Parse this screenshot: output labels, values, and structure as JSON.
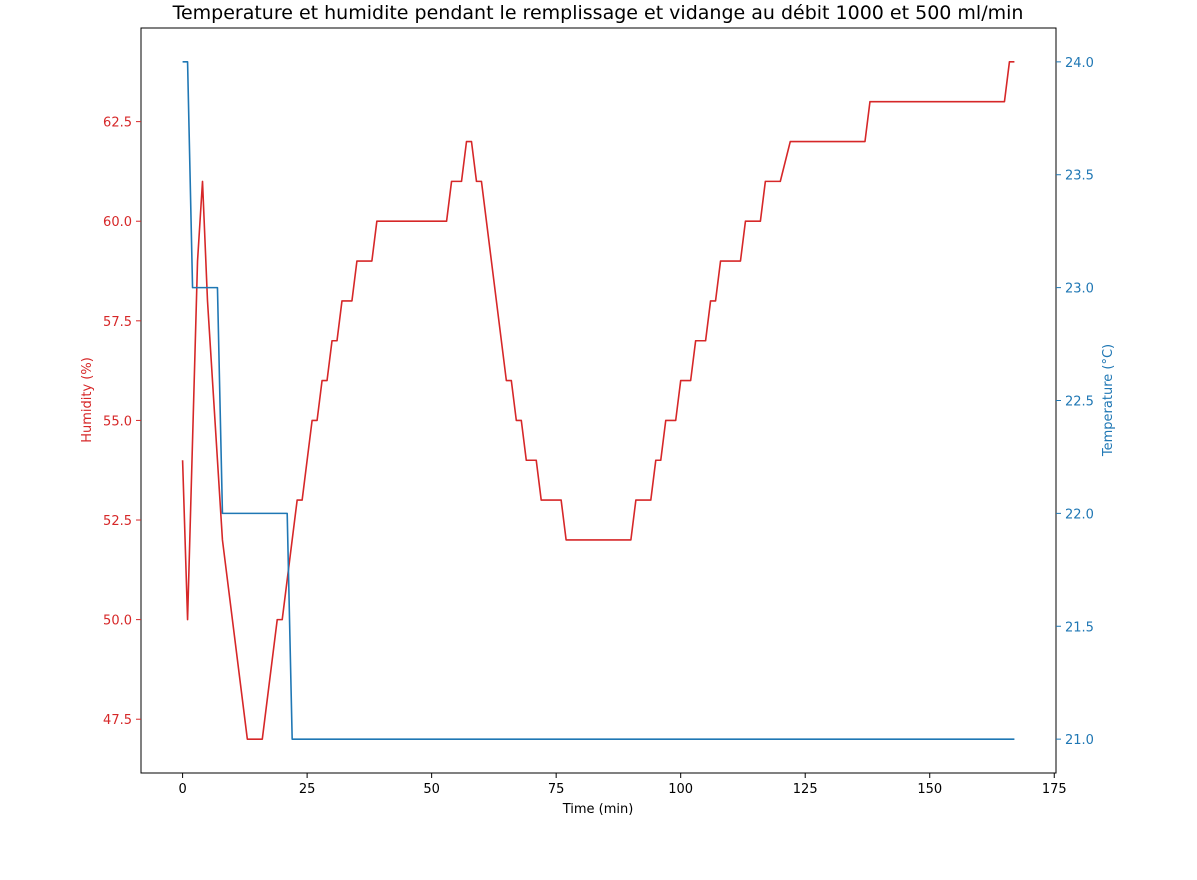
{
  "chart_data": {
    "type": "line",
    "title": "Temperature et humidite pendant le remplissage et vidange au débit 1000 et 500 ml/min",
    "xlabel": "Time (min)",
    "xlim": [
      -8.35,
      175.35
    ],
    "xticks": [
      0,
      25,
      50,
      75,
      100,
      125,
      150,
      175
    ],
    "xtick_labels": [
      "0",
      "25",
      "50",
      "75",
      "100",
      "125",
      "150",
      "175"
    ],
    "grid": false,
    "axes": {
      "left": {
        "label": "Humidity (%)",
        "color": "#d62728",
        "ylim": [
          46.15,
          64.85
        ],
        "ticks": [
          47.5,
          50.0,
          52.5,
          55.0,
          57.5,
          60.0,
          62.5
        ],
        "tick_labels": [
          "47.5",
          "50.0",
          "52.5",
          "55.0",
          "57.5",
          "60.0",
          "62.5"
        ]
      },
      "right": {
        "label": "Temperature (°C)",
        "color": "#1f77b4",
        "ylim": [
          20.85,
          24.15
        ],
        "ticks": [
          21.0,
          21.5,
          22.0,
          22.5,
          23.0,
          23.5,
          24.0
        ],
        "tick_labels": [
          "21.0",
          "21.5",
          "22.0",
          "22.5",
          "23.0",
          "23.5",
          "24.0"
        ]
      }
    },
    "series": [
      {
        "axis": "left",
        "color": "#d62728",
        "x": [
          0,
          1,
          3,
          4,
          5,
          8,
          13,
          16,
          19,
          20,
          23,
          24,
          26,
          27,
          28,
          29,
          30,
          31,
          32,
          34,
          35,
          38,
          39,
          53,
          54,
          56,
          57,
          58,
          59,
          60,
          65,
          66,
          67,
          68,
          69,
          71,
          72,
          76,
          77,
          90,
          91,
          94,
          95,
          96,
          97,
          99,
          100,
          102,
          103,
          105,
          106,
          107,
          108,
          109,
          112,
          113,
          116,
          117,
          120,
          122,
          137,
          138,
          165,
          166,
          167
        ],
        "y": [
          54,
          50,
          59,
          61,
          58,
          52,
          47,
          47,
          50,
          50,
          53,
          53,
          55,
          55,
          56,
          56,
          57,
          57,
          58,
          58,
          59,
          59,
          60,
          60,
          61,
          61,
          62,
          62,
          61,
          61,
          56,
          56,
          55,
          55,
          54,
          54,
          53,
          53,
          52,
          52,
          53,
          53,
          54,
          54,
          55,
          55,
          56,
          56,
          57,
          57,
          58,
          58,
          59,
          59,
          59,
          60,
          60,
          61,
          61,
          62,
          62,
          63,
          63,
          64,
          64
        ]
      },
      {
        "axis": "right",
        "color": "#1f77b4",
        "x": [
          0,
          1,
          2,
          7,
          8,
          21,
          22,
          167
        ],
        "y": [
          24,
          24,
          23,
          23,
          22,
          22,
          21,
          21
        ]
      }
    ]
  }
}
